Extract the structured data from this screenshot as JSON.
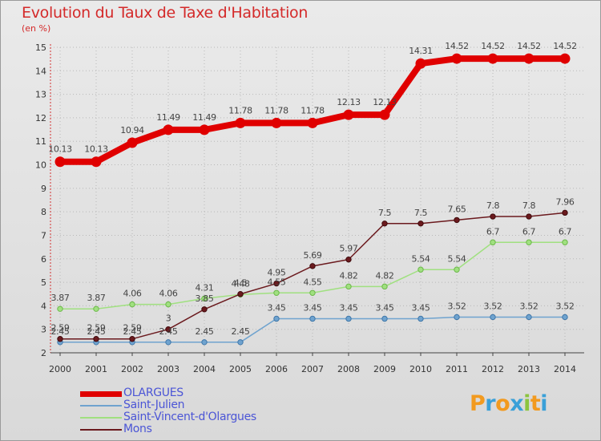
{
  "title": "Evolution du Taux de Taxe d'Habitation",
  "unit_label": "(en %)",
  "brand": "Proxiti",
  "colors": {
    "OLARGUES": "#e00000",
    "Saint-Julien": "#6fa3cf",
    "Saint-Vincent-d'Olargues": "#a0e080",
    "Mons": "#6b1a1e",
    "title": "#d42a2a",
    "legend_text": "#4b55d6"
  },
  "chart_data": {
    "type": "line",
    "title": "Evolution du Taux de Taxe d'Habitation",
    "ylabel": "(en %)",
    "xlabel": "",
    "x": [
      2000,
      2001,
      2002,
      2003,
      2004,
      2005,
      2006,
      2007,
      2008,
      2009,
      2010,
      2011,
      2012,
      2013,
      2014
    ],
    "ylim": [
      2,
      15
    ],
    "yticks": [
      2,
      3,
      4,
      5,
      6,
      7,
      8,
      9,
      10,
      11,
      12,
      13,
      14,
      15
    ],
    "legend_position": "bottom-left",
    "series": [
      {
        "name": "OLARGUES",
        "values": [
          10.13,
          10.13,
          10.94,
          11.49,
          11.49,
          11.78,
          11.78,
          11.78,
          12.13,
          12.13,
          14.31,
          14.52,
          14.52,
          14.52,
          14.52
        ],
        "labels": [
          "10.13",
          "10.13",
          "10.94",
          "11.49",
          "11.49",
          "11.78",
          "11.78",
          "11.78",
          "12.13",
          "12.13",
          "14.31",
          "14.52",
          "14.52",
          "14.52",
          "14.52"
        ]
      },
      {
        "name": "Saint-Julien",
        "values": [
          2.45,
          2.45,
          2.45,
          2.45,
          2.45,
          2.45,
          3.45,
          3.45,
          3.45,
          3.45,
          3.45,
          3.52,
          3.52,
          3.52,
          3.52
        ],
        "labels": [
          "2.45",
          "2.45",
          "2.45",
          "2.45",
          "2.45",
          "2.45",
          "3.45",
          "3.45",
          "3.45",
          "3.45",
          "3.45",
          "3.52",
          "3.52",
          "3.52",
          "3.52"
        ]
      },
      {
        "name": "Saint-Vincent-d'Olargues",
        "values": [
          3.87,
          3.87,
          4.06,
          4.06,
          4.31,
          4.48,
          4.55,
          4.55,
          4.82,
          4.82,
          5.54,
          5.54,
          6.7,
          6.7,
          6.7
        ],
        "labels": [
          "3.87",
          "3.87",
          "4.06",
          "4.06",
          "4.31",
          "4.48",
          "4.55",
          "4.55",
          "4.82",
          "4.82",
          "5.54",
          "5.54",
          "6.7",
          "6.7",
          "6.7"
        ]
      },
      {
        "name": "Mons",
        "values": [
          2.59,
          2.59,
          2.59,
          3,
          3.85,
          4.5,
          4.95,
          5.69,
          5.97,
          7.5,
          7.5,
          7.65,
          7.8,
          7.8,
          7.96
        ],
        "labels": [
          "2.59",
          "2.59",
          "2.59",
          "3",
          "3.85",
          "4.5",
          "4.95",
          "5.69",
          "5.97",
          "7.5",
          "7.5",
          "7.65",
          "7.8",
          "7.8",
          "7.96"
        ]
      }
    ]
  }
}
